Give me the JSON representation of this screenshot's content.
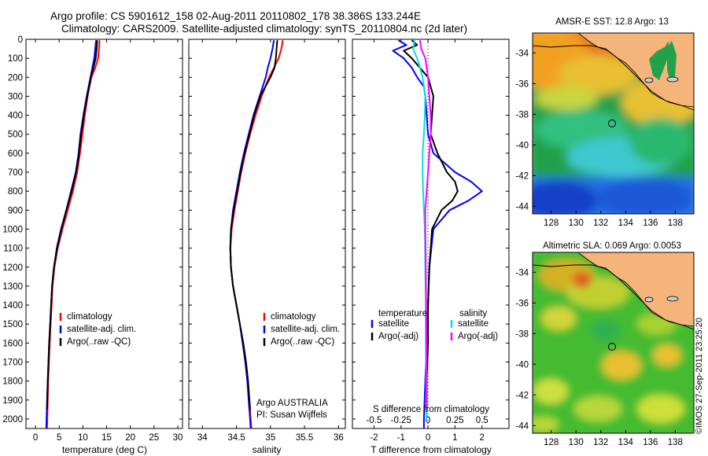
{
  "header": {
    "line1": "Argo profile: CS 5901612_158 02-Aug-2011 20110802_178 38.386S 133.244E",
    "line2": "Climatology: CARS2009. Satellite-adjusted climatology: synTS_20110804.nc (2d later)"
  },
  "colors": {
    "climatology": "#ff0000",
    "satellite": "#0000ff",
    "argo": "#000000",
    "satellite_salinity": "#00e0e0",
    "argo_salinity_adj": "#ff00ff"
  },
  "legend_profiles": [
    {
      "label": "climatology",
      "color": "#ff0000"
    },
    {
      "label": "satellite-adj. clim.",
      "color": "#0000ff"
    },
    {
      "label": "Argo(..raw -QC)",
      "color": "#000000"
    }
  ],
  "legend_diff": {
    "temperature_title": "temperature",
    "salinity_title": "salinity",
    "temperature_items": [
      {
        "label": "satellite",
        "color": "#0000ff"
      },
      {
        "label": "Argo(-adj)",
        "color": "#000000"
      }
    ],
    "salinity_items": [
      {
        "label": "satellite",
        "color": "#00e0e0"
      },
      {
        "label": "Argo(-adj)",
        "color": "#ff00ff"
      }
    ]
  },
  "credits": {
    "agency": "Argo AUSTRALIA",
    "pi": "PI: Susan Wijffels",
    "stamp": "©IMOS 27-Sep-2011 23:25:20"
  },
  "chart_data": [
    {
      "type": "line",
      "xlabel": "temperature (deg C)",
      "ylabel": "",
      "xlim": [
        -2,
        31
      ],
      "ylim": [
        2050,
        0
      ],
      "x_ticks": [
        0,
        5,
        10,
        15,
        20,
        25,
        30
      ],
      "y_ticks": [
        0,
        100,
        200,
        300,
        400,
        500,
        600,
        700,
        800,
        900,
        1000,
        1100,
        1200,
        1300,
        1400,
        1500,
        1600,
        1700,
        1800,
        1900,
        2000
      ],
      "series": [
        {
          "name": "climatology",
          "color": "#ff0000",
          "depth": [
            5,
            50,
            100,
            150,
            200,
            300,
            400,
            500,
            600,
            700,
            800,
            900,
            1000,
            1100,
            1200,
            1300,
            1400,
            1500,
            1600,
            1700,
            1800,
            1900,
            2000,
            2050
          ],
          "values": [
            13.5,
            13.4,
            13.2,
            12.6,
            11.8,
            11.0,
            10.4,
            9.9,
            9.4,
            8.8,
            7.9,
            6.8,
            5.7,
            4.7,
            4.0,
            3.6,
            3.4,
            3.2,
            3.0,
            2.85,
            2.7,
            2.6,
            2.5,
            2.45
          ]
        },
        {
          "name": "satellite-adj. clim.",
          "color": "#0000ff",
          "depth": [
            5,
            50,
            100,
            150,
            200,
            300,
            400,
            500,
            600,
            700,
            800,
            900,
            1000,
            1100,
            1200,
            1300,
            1400,
            1500,
            1600,
            1700,
            1800,
            1900,
            2000,
            2050
          ],
          "values": [
            12.8,
            12.6,
            12.4,
            12.0,
            11.6,
            10.8,
            10.1,
            9.5,
            9.1,
            8.5,
            7.5,
            6.5,
            5.5,
            4.6,
            3.9,
            3.5,
            3.3,
            3.1,
            2.9,
            2.75,
            2.6,
            2.45,
            2.35,
            2.3
          ]
        },
        {
          "name": "Argo(..raw -QC)",
          "color": "#000000",
          "depth": [
            5,
            50,
            100,
            150,
            200,
            300,
            400,
            500,
            600,
            700,
            800,
            900,
            1000,
            1100,
            1200,
            1300,
            1400,
            1500,
            1600,
            1700,
            1800,
            1900,
            1950
          ],
          "values": [
            13.0,
            12.9,
            12.7,
            12.2,
            11.7,
            10.9,
            10.2,
            9.6,
            9.2,
            8.6,
            7.6,
            6.5,
            5.4,
            4.5,
            3.9,
            3.5,
            3.3,
            3.1,
            2.9,
            2.75,
            2.6,
            2.5,
            2.45
          ]
        }
      ]
    },
    {
      "type": "line",
      "xlabel": "salinity",
      "ylabel": "",
      "xlim": [
        33.8,
        36.1
      ],
      "ylim": [
        2050,
        0
      ],
      "x_ticks": [
        34,
        34.5,
        35,
        35.5,
        36
      ],
      "series": [
        {
          "name": "climatology",
          "color": "#ff0000",
          "depth": [
            5,
            50,
            100,
            150,
            200,
            300,
            400,
            500,
            600,
            700,
            800,
            900,
            1000,
            1100,
            1200,
            1300,
            1400,
            1500,
            1600,
            1700,
            1800,
            1900,
            2000,
            2050
          ],
          "values": [
            35.18,
            35.16,
            35.12,
            35.05,
            34.98,
            34.87,
            34.78,
            34.7,
            34.63,
            34.57,
            34.52,
            34.47,
            34.43,
            34.41,
            34.42,
            34.45,
            34.5,
            34.55,
            34.6,
            34.64,
            34.67,
            34.69,
            34.71,
            34.72
          ]
        },
        {
          "name": "satellite-adj. clim.",
          "color": "#0000ff",
          "depth": [
            5,
            50,
            100,
            150,
            200,
            300,
            400,
            500,
            600,
            700,
            800,
            900,
            1000,
            1100,
            1200,
            1300,
            1400,
            1500,
            1600,
            1700,
            1800,
            1900,
            2000,
            2050
          ],
          "values": [
            35.05,
            35.03,
            35.0,
            34.96,
            34.93,
            34.84,
            34.75,
            34.68,
            34.61,
            34.55,
            34.5,
            34.45,
            34.42,
            34.41,
            34.42,
            34.45,
            34.5,
            34.55,
            34.59,
            34.63,
            34.66,
            34.68,
            34.7,
            34.71
          ]
        },
        {
          "name": "Argo(..raw -QC)",
          "color": "#000000",
          "depth": [
            5,
            50,
            100,
            150,
            200,
            300,
            400,
            500,
            600,
            700,
            800,
            900,
            1000,
            1100,
            1200,
            1300,
            1400,
            1500,
            1600,
            1700,
            1800,
            1900,
            1950
          ],
          "values": [
            35.1,
            35.09,
            35.08,
            35.06,
            35.0,
            34.85,
            34.76,
            34.69,
            34.62,
            34.56,
            34.51,
            34.46,
            34.42,
            34.41,
            34.42,
            34.45,
            34.5,
            34.55,
            34.6,
            34.64,
            34.67,
            34.69,
            34.7
          ]
        }
      ]
    },
    {
      "type": "line",
      "xlabel": "T difference from climatology",
      "xlabel_top": "S difference from climatology",
      "xlim": [
        -2.8,
        3.0
      ],
      "ylim": [
        2050,
        0
      ],
      "x_ticks": [
        -2,
        -1,
        0,
        1,
        2
      ],
      "top_ticks": [
        -0.5,
        -0.25,
        0,
        0.25,
        0.5
      ],
      "top_scale": 4,
      "series": [
        {
          "name": "temperature satellite",
          "color": "#0000ff",
          "depth": [
            5,
            30,
            60,
            100,
            150,
            200,
            250,
            300,
            400,
            500,
            600,
            700,
            750,
            800,
            850,
            900,
            1000,
            1200,
            1400,
            1600,
            1800,
            2000,
            2050
          ],
          "values": [
            -1.1,
            -0.8,
            -1.3,
            -0.9,
            -0.6,
            -0.4,
            -0.15,
            -0.1,
            -0.05,
            0.0,
            0.2,
            1.0,
            1.6,
            2.0,
            1.5,
            0.8,
            0.2,
            0.05,
            0.0,
            -0.05,
            -0.1,
            -0.15,
            -0.15
          ]
        },
        {
          "name": "temperature Argo(-adj)",
          "color": "#000000",
          "depth": [
            5,
            30,
            60,
            100,
            150,
            200,
            250,
            300,
            400,
            500,
            600,
            700,
            750,
            800,
            850,
            900,
            1000,
            1200,
            1400,
            1600,
            1800,
            1950
          ],
          "values": [
            -0.6,
            -0.4,
            -0.9,
            -0.6,
            -0.3,
            0.0,
            0.1,
            0.2,
            0.15,
            0.1,
            0.35,
            0.7,
            1.0,
            1.1,
            0.9,
            0.5,
            0.15,
            0.05,
            0.0,
            0.0,
            -0.05,
            -0.05
          ]
        },
        {
          "name": "salinity satellite",
          "color": "#00e0e0",
          "depth": [
            5,
            50,
            100,
            150,
            200,
            300,
            400,
            500,
            600,
            700,
            800,
            900,
            1000,
            1200,
            1400,
            1600,
            1800,
            2000
          ],
          "values": [
            -0.5,
            -0.55,
            -0.4,
            -0.3,
            -0.2,
            -0.1,
            -0.12,
            -0.15,
            -0.2,
            -0.2,
            -0.18,
            -0.15,
            -0.12,
            -0.1,
            -0.08,
            -0.08,
            -0.07,
            -0.06
          ]
        },
        {
          "name": "salinity Argo(-adj)",
          "color": "#ff00ff",
          "depth": [
            5,
            50,
            100,
            150,
            200,
            300,
            400,
            500,
            600,
            700,
            800,
            900,
            1000,
            1200,
            1400,
            1600,
            1800,
            1950
          ],
          "values": [
            -0.3,
            -0.25,
            -0.1,
            -0.05,
            0.0,
            0.05,
            0.1,
            0.1,
            0.05,
            0.0,
            -0.05,
            -0.1,
            -0.1,
            -0.08,
            -0.07,
            -0.06,
            -0.05,
            -0.05
          ]
        }
      ]
    },
    {
      "type": "heatmap",
      "title": "AMSR-E SST: 12.8 Argo: 13",
      "xlim": [
        126.5,
        139.5
      ],
      "ylim": [
        -44.5,
        -32.7
      ],
      "x_ticks": [
        128,
        130,
        132,
        134,
        136,
        138
      ],
      "y_ticks": [
        -34,
        -36,
        -38,
        -40,
        -42,
        -44
      ],
      "x_tick_labels": [
        "128",
        "130",
        "132",
        "134",
        "136",
        "138"
      ],
      "y_tick_labels": [
        "-34",
        "-36",
        "-38",
        "-40",
        "-42",
        "-44"
      ],
      "marker": {
        "lon": 133.244,
        "lat": -38.386
      }
    },
    {
      "type": "heatmap",
      "title": "Altimetric SLA: 0.069 Argo: 0.0053",
      "xlim": [
        126.5,
        139.5
      ],
      "ylim": [
        -44.5,
        -32.7
      ],
      "x_ticks": [
        128,
        130,
        132,
        134,
        136,
        138
      ],
      "y_ticks": [
        -34,
        -36,
        -38,
        -40,
        -42,
        -44
      ],
      "x_tick_labels": [
        "128",
        "130",
        "132",
        "134",
        "136",
        "138"
      ],
      "y_tick_labels": [
        "-34",
        "-36",
        "-38",
        "-40",
        "-42",
        "-44"
      ],
      "marker": {
        "lon": 133.244,
        "lat": -38.386
      }
    }
  ]
}
